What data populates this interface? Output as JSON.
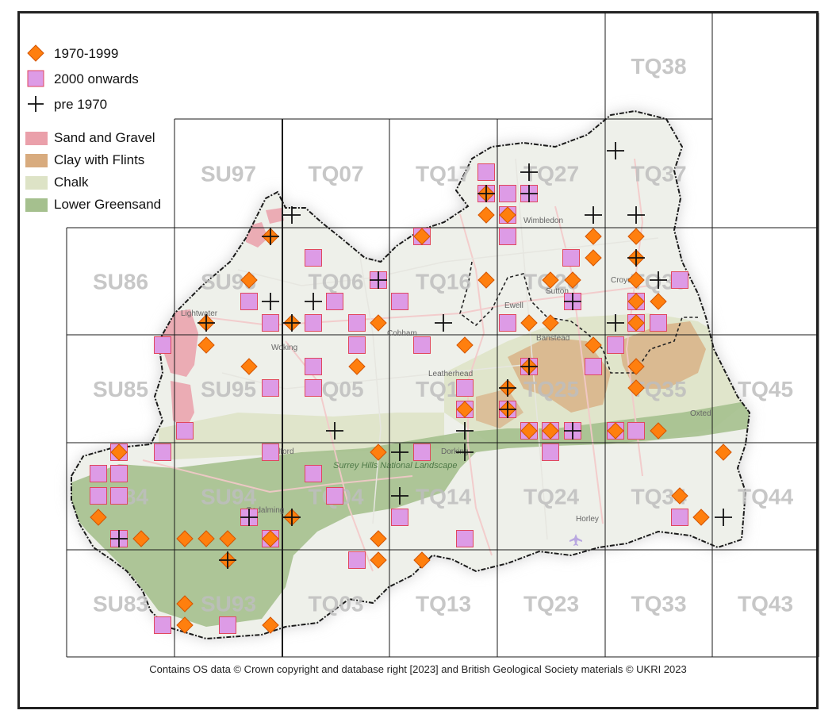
{
  "legend": {
    "records": [
      {
        "label": "1970-1999",
        "symbol": "diamond",
        "color": "#ff7f0e"
      },
      {
        "label": "2000 onwards",
        "symbol": "square",
        "color": "#dd9be6"
      },
      {
        "label": "pre 1970",
        "symbol": "cross",
        "color": "#111111"
      }
    ],
    "geology": [
      {
        "label": "Sand and Gravel",
        "color": "#eaa0aa"
      },
      {
        "label": "Clay with Flints",
        "color": "#d8ab7e"
      },
      {
        "label": "Chalk",
        "color": "#dde3c6"
      },
      {
        "label": "Lower Greensand",
        "color": "#a5c08e"
      }
    ]
  },
  "grid_squares": [
    {
      "label": "TQ38",
      "col": 5,
      "row": 0
    },
    {
      "label": "SU97",
      "col": 1,
      "row": 1
    },
    {
      "label": "TQ07",
      "col": 2,
      "row": 1
    },
    {
      "label": "TQ17",
      "col": 3,
      "row": 1
    },
    {
      "label": "TQ27",
      "col": 4,
      "row": 1
    },
    {
      "label": "TQ37",
      "col": 5,
      "row": 1
    },
    {
      "label": "SU86",
      "col": 0,
      "row": 2
    },
    {
      "label": "SU96",
      "col": 1,
      "row": 2
    },
    {
      "label": "TQ06",
      "col": 2,
      "row": 2
    },
    {
      "label": "TQ16",
      "col": 3,
      "row": 2
    },
    {
      "label": "TQ26",
      "col": 4,
      "row": 2
    },
    {
      "label": "TQ36",
      "col": 5,
      "row": 2
    },
    {
      "label": "SU85",
      "col": 0,
      "row": 3
    },
    {
      "label": "SU95",
      "col": 1,
      "row": 3
    },
    {
      "label": "TQ05",
      "col": 2,
      "row": 3
    },
    {
      "label": "TQ15",
      "col": 3,
      "row": 3
    },
    {
      "label": "TQ25",
      "col": 4,
      "row": 3
    },
    {
      "label": "TQ35",
      "col": 5,
      "row": 3
    },
    {
      "label": "TQ45",
      "col": 6,
      "row": 3
    },
    {
      "label": "SU84",
      "col": 0,
      "row": 4
    },
    {
      "label": "SU94",
      "col": 1,
      "row": 4
    },
    {
      "label": "TQ04",
      "col": 2,
      "row": 4
    },
    {
      "label": "TQ14",
      "col": 3,
      "row": 4
    },
    {
      "label": "TQ24",
      "col": 4,
      "row": 4
    },
    {
      "label": "TQ34",
      "col": 5,
      "row": 4
    },
    {
      "label": "TQ44",
      "col": 6,
      "row": 4
    },
    {
      "label": "SU83",
      "col": 0,
      "row": 5
    },
    {
      "label": "SU93",
      "col": 1,
      "row": 5
    },
    {
      "label": "TQ03",
      "col": 2,
      "row": 5
    },
    {
      "label": "TQ13",
      "col": 3,
      "row": 5
    },
    {
      "label": "TQ23",
      "col": 4,
      "row": 5
    },
    {
      "label": "TQ33",
      "col": 5,
      "row": 5
    },
    {
      "label": "TQ43",
      "col": 6,
      "row": 5
    }
  ],
  "place_labels": [
    "Lightwater",
    "Woking",
    "Cobham",
    "Leatherhead",
    "Ewell",
    "Banstead",
    "Wimbledon",
    "Sutton",
    "Croydon",
    "Oxted",
    "Horley",
    "Godalming",
    "Guildford",
    "Dorking",
    "Surrey Hills National Landscape"
  ],
  "credit": "Contains OS data  © Crown copyright and database right [2023] and British Geological Society materials © UKRI 2023"
}
